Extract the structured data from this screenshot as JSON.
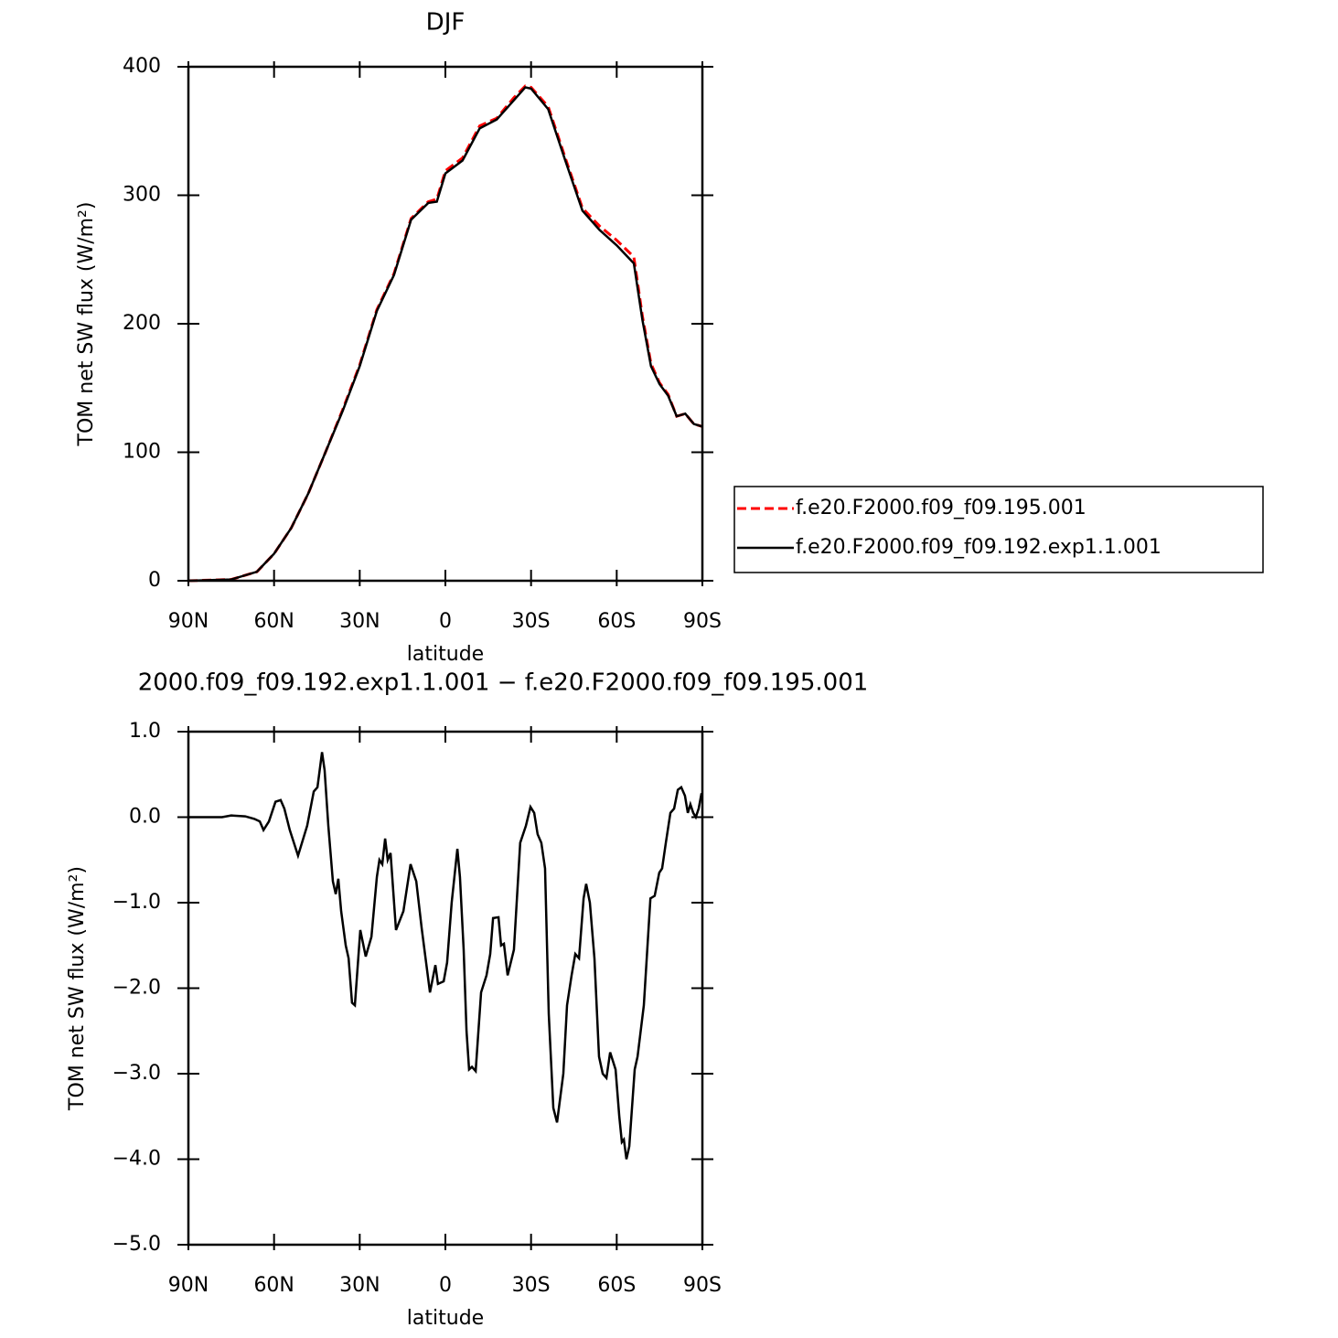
{
  "chart_data": [
    {
      "type": "line",
      "title": "DJF",
      "xlabel": "latitude",
      "ylabel": "TOM net SW flux (W/m²)",
      "x": [
        90,
        75,
        66,
        60,
        54,
        48,
        42,
        36,
        30,
        24,
        18,
        12,
        6,
        3,
        0,
        -6,
        -12,
        -18,
        -24,
        -28,
        -30,
        -36,
        -42,
        -48,
        -54,
        -60,
        -66,
        -69,
        -72,
        -75,
        -78,
        -81,
        -84,
        -87,
        -90
      ],
      "series": [
        {
          "name": "f.e20.F2000.f09_f09.195.001",
          "color": "#ff0000",
          "dashed": true,
          "values": [
            0,
            1,
            7,
            21,
            41,
            68,
            100,
            133,
            168,
            211,
            239,
            282,
            295,
            297,
            319,
            329,
            354,
            360,
            376,
            385,
            384,
            369,
            329,
            290,
            276,
            265,
            252,
            206,
            169,
            154,
            145,
            128,
            130,
            122,
            120
          ]
        },
        {
          "name": "f.e20.F2000.f09_f09.192.exp1.1.001",
          "color": "#000000",
          "dashed": false,
          "values": [
            0,
            1,
            7,
            21,
            41,
            68,
            100,
            132,
            167,
            210,
            238,
            281,
            294,
            295,
            317,
            327,
            352,
            359,
            374,
            384,
            383,
            367,
            327,
            288,
            273,
            261,
            247,
            203,
            167,
            153,
            144,
            128,
            130,
            122,
            120
          ]
        }
      ],
      "xlim": [
        90,
        -90
      ],
      "xticks": [
        {
          "value": 90,
          "label": "90N"
        },
        {
          "value": 60,
          "label": "60N"
        },
        {
          "value": 30,
          "label": "30N"
        },
        0,
        {
          "value": -30,
          "label": "30S"
        },
        {
          "value": -60,
          "label": "60S"
        },
        {
          "value": -90,
          "label": "90S"
        }
      ],
      "ylim": [
        0,
        400
      ],
      "yticks": [
        0,
        100,
        200,
        300,
        400
      ],
      "legend": "right"
    },
    {
      "type": "line",
      "title": "2000.f09_f09.192.exp1.1.001 − f.e20.F2000.f09_f09.195.001",
      "xlabel": "latitude",
      "ylabel": "TOM net SW flux (W/m²)",
      "x": [
        90,
        78.2,
        75,
        70.1,
        66.9,
        65,
        63.7,
        61.8,
        59.5,
        57.7,
        56.4,
        54.5,
        51.6,
        48.4,
        46.1,
        44.8,
        43.2,
        42.3,
        41,
        39.4,
        38.4,
        37.5,
        36.5,
        34.9,
        33.9,
        32.7,
        31.7,
        29.8,
        27.9,
        25.9,
        24,
        23.1,
        22.1,
        21.1,
        20.2,
        19.2,
        17.3,
        14.7,
        12.2,
        10.2,
        8.3,
        5.4,
        3.5,
        2.6,
        0.6,
        -0.6,
        -2.2,
        -4.2,
        -5.1,
        -6.4,
        -7.4,
        -8.3,
        -9.3,
        -10.6,
        -12.5,
        -14.4,
        -15.7,
        -16.7,
        -18.6,
        -19.5,
        -20.5,
        -21.8,
        -24,
        -26.2,
        -28.2,
        -29.8,
        -31.1,
        -32.3,
        -33.6,
        -34.9,
        -36.2,
        -37.8,
        -39.1,
        -41.3,
        -42.6,
        -44.2,
        -45.5,
        -46.8,
        -48.4,
        -49.3,
        -50.6,
        -52.2,
        -53.8,
        -55.1,
        -56.4,
        -57.7,
        -59.6,
        -60.9,
        -61.8,
        -62.5,
        -63.4,
        -64.4,
        -66.3,
        -67.3,
        -69.5,
        -71.8,
        -73.3,
        -74.9,
        -75.9,
        -77.2,
        -78.8,
        -80.1,
        -81.4,
        -82.6,
        -83.9,
        -84.9,
        -85.8,
        -86.8,
        -87.7,
        -88.7,
        -89.7
      ],
      "series": [
        {
          "color": "#000000",
          "dashed": false,
          "values": [
            0,
            0,
            0.02,
            0.01,
            -0.02,
            -0.05,
            -0.15,
            -0.05,
            0.18,
            0.2,
            0.1,
            -0.15,
            -0.45,
            -0.1,
            0.3,
            0.35,
            0.76,
            0.55,
            -0.1,
            -0.75,
            -0.9,
            -0.72,
            -1.1,
            -1.5,
            -1.65,
            -2.17,
            -2.2,
            -1.32,
            -1.63,
            -1.4,
            -0.7,
            -0.5,
            -0.55,
            -0.25,
            -0.5,
            -0.42,
            -1.32,
            -1.1,
            -0.55,
            -0.75,
            -1.3,
            -2.05,
            -1.73,
            -1.95,
            -1.92,
            -1.7,
            -1.0,
            -0.37,
            -0.7,
            -1.55,
            -2.5,
            -2.95,
            -2.92,
            -2.97,
            -2.05,
            -1.85,
            -1.6,
            -1.18,
            -1.17,
            -1.5,
            -1.48,
            -1.85,
            -1.55,
            -0.3,
            -0.1,
            0.12,
            0.05,
            -0.2,
            -0.3,
            -0.6,
            -2.3,
            -3.4,
            -3.57,
            -3.0,
            -2.2,
            -1.85,
            -1.6,
            -1.65,
            -0.95,
            -0.78,
            -1.0,
            -1.65,
            -2.8,
            -3.0,
            -3.05,
            -2.75,
            -2.95,
            -3.5,
            -3.8,
            -3.77,
            -4.0,
            -3.85,
            -2.95,
            -2.8,
            -2.2,
            -0.95,
            -0.92,
            -0.65,
            -0.6,
            -0.3,
            0.05,
            0.1,
            0.32,
            0.35,
            0.25,
            0.05,
            0.15,
            0.05,
            0,
            0.1,
            0.28
          ]
        }
      ],
      "xlim": [
        90,
        -90
      ],
      "xticks": [
        {
          "value": 90,
          "label": "90N"
        },
        {
          "value": 60,
          "label": "60N"
        },
        {
          "value": 30,
          "label": "30N"
        },
        0,
        {
          "value": -30,
          "label": "30S"
        },
        {
          "value": -60,
          "label": "60S"
        },
        {
          "value": -90,
          "label": "90S"
        }
      ],
      "ylim": [
        -5,
        1
      ],
      "yticks": [
        {
          "value": 1,
          "label": "1.0"
        },
        {
          "value": 0,
          "label": "0.0"
        },
        {
          "value": -1,
          "label": "−1.0"
        },
        {
          "value": -2,
          "label": "−2.0"
        },
        {
          "value": -3,
          "label": "−3.0"
        },
        {
          "value": -4,
          "label": "−4.0"
        },
        {
          "value": -5,
          "label": "−5.0"
        }
      ]
    }
  ]
}
